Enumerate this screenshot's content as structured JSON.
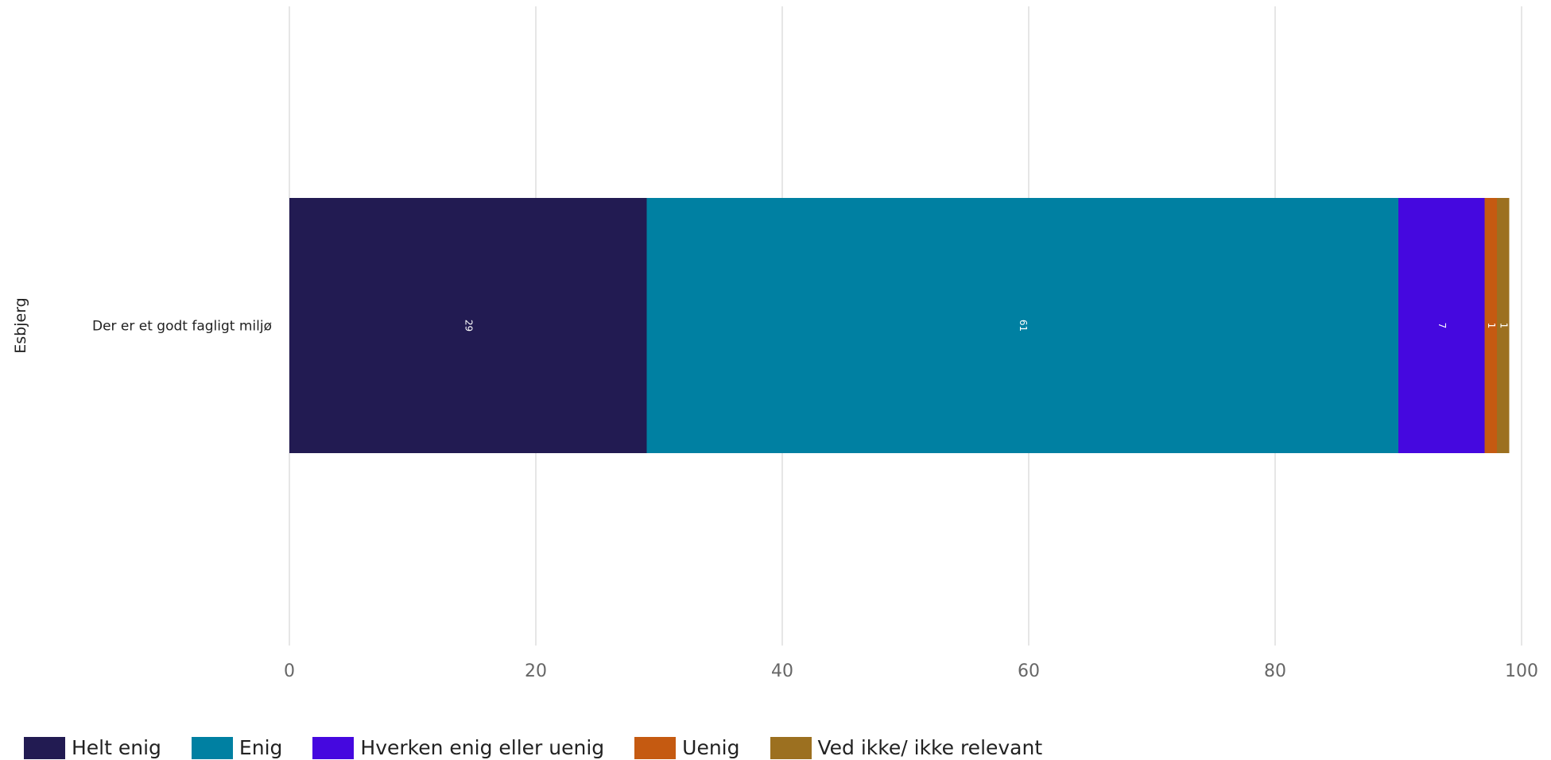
{
  "chart_data": {
    "type": "bar",
    "orientation": "horizontal",
    "stacked": true,
    "group_label": "Esbjerg",
    "categories": [
      "Der er et godt fagligt miljø"
    ],
    "series": [
      {
        "name": "Helt enig",
        "values": [
          29
        ],
        "color": "#221b52"
      },
      {
        "name": "Enig",
        "values": [
          61
        ],
        "color": "#0080a2"
      },
      {
        "name": "Hverken enig eller uenig",
        "values": [
          7
        ],
        "color": "#4508df"
      },
      {
        "name": "Uenig",
        "values": [
          1
        ],
        "color": "#c55a11"
      },
      {
        "name": "Ved ikke/ ikke relevant",
        "values": [
          1
        ],
        "color": "#9c7020"
      }
    ],
    "xlim": [
      0,
      100
    ],
    "xticks": [
      0,
      20,
      40,
      60,
      80,
      100
    ],
    "grid": true,
    "legend_position": "bottom-left"
  }
}
